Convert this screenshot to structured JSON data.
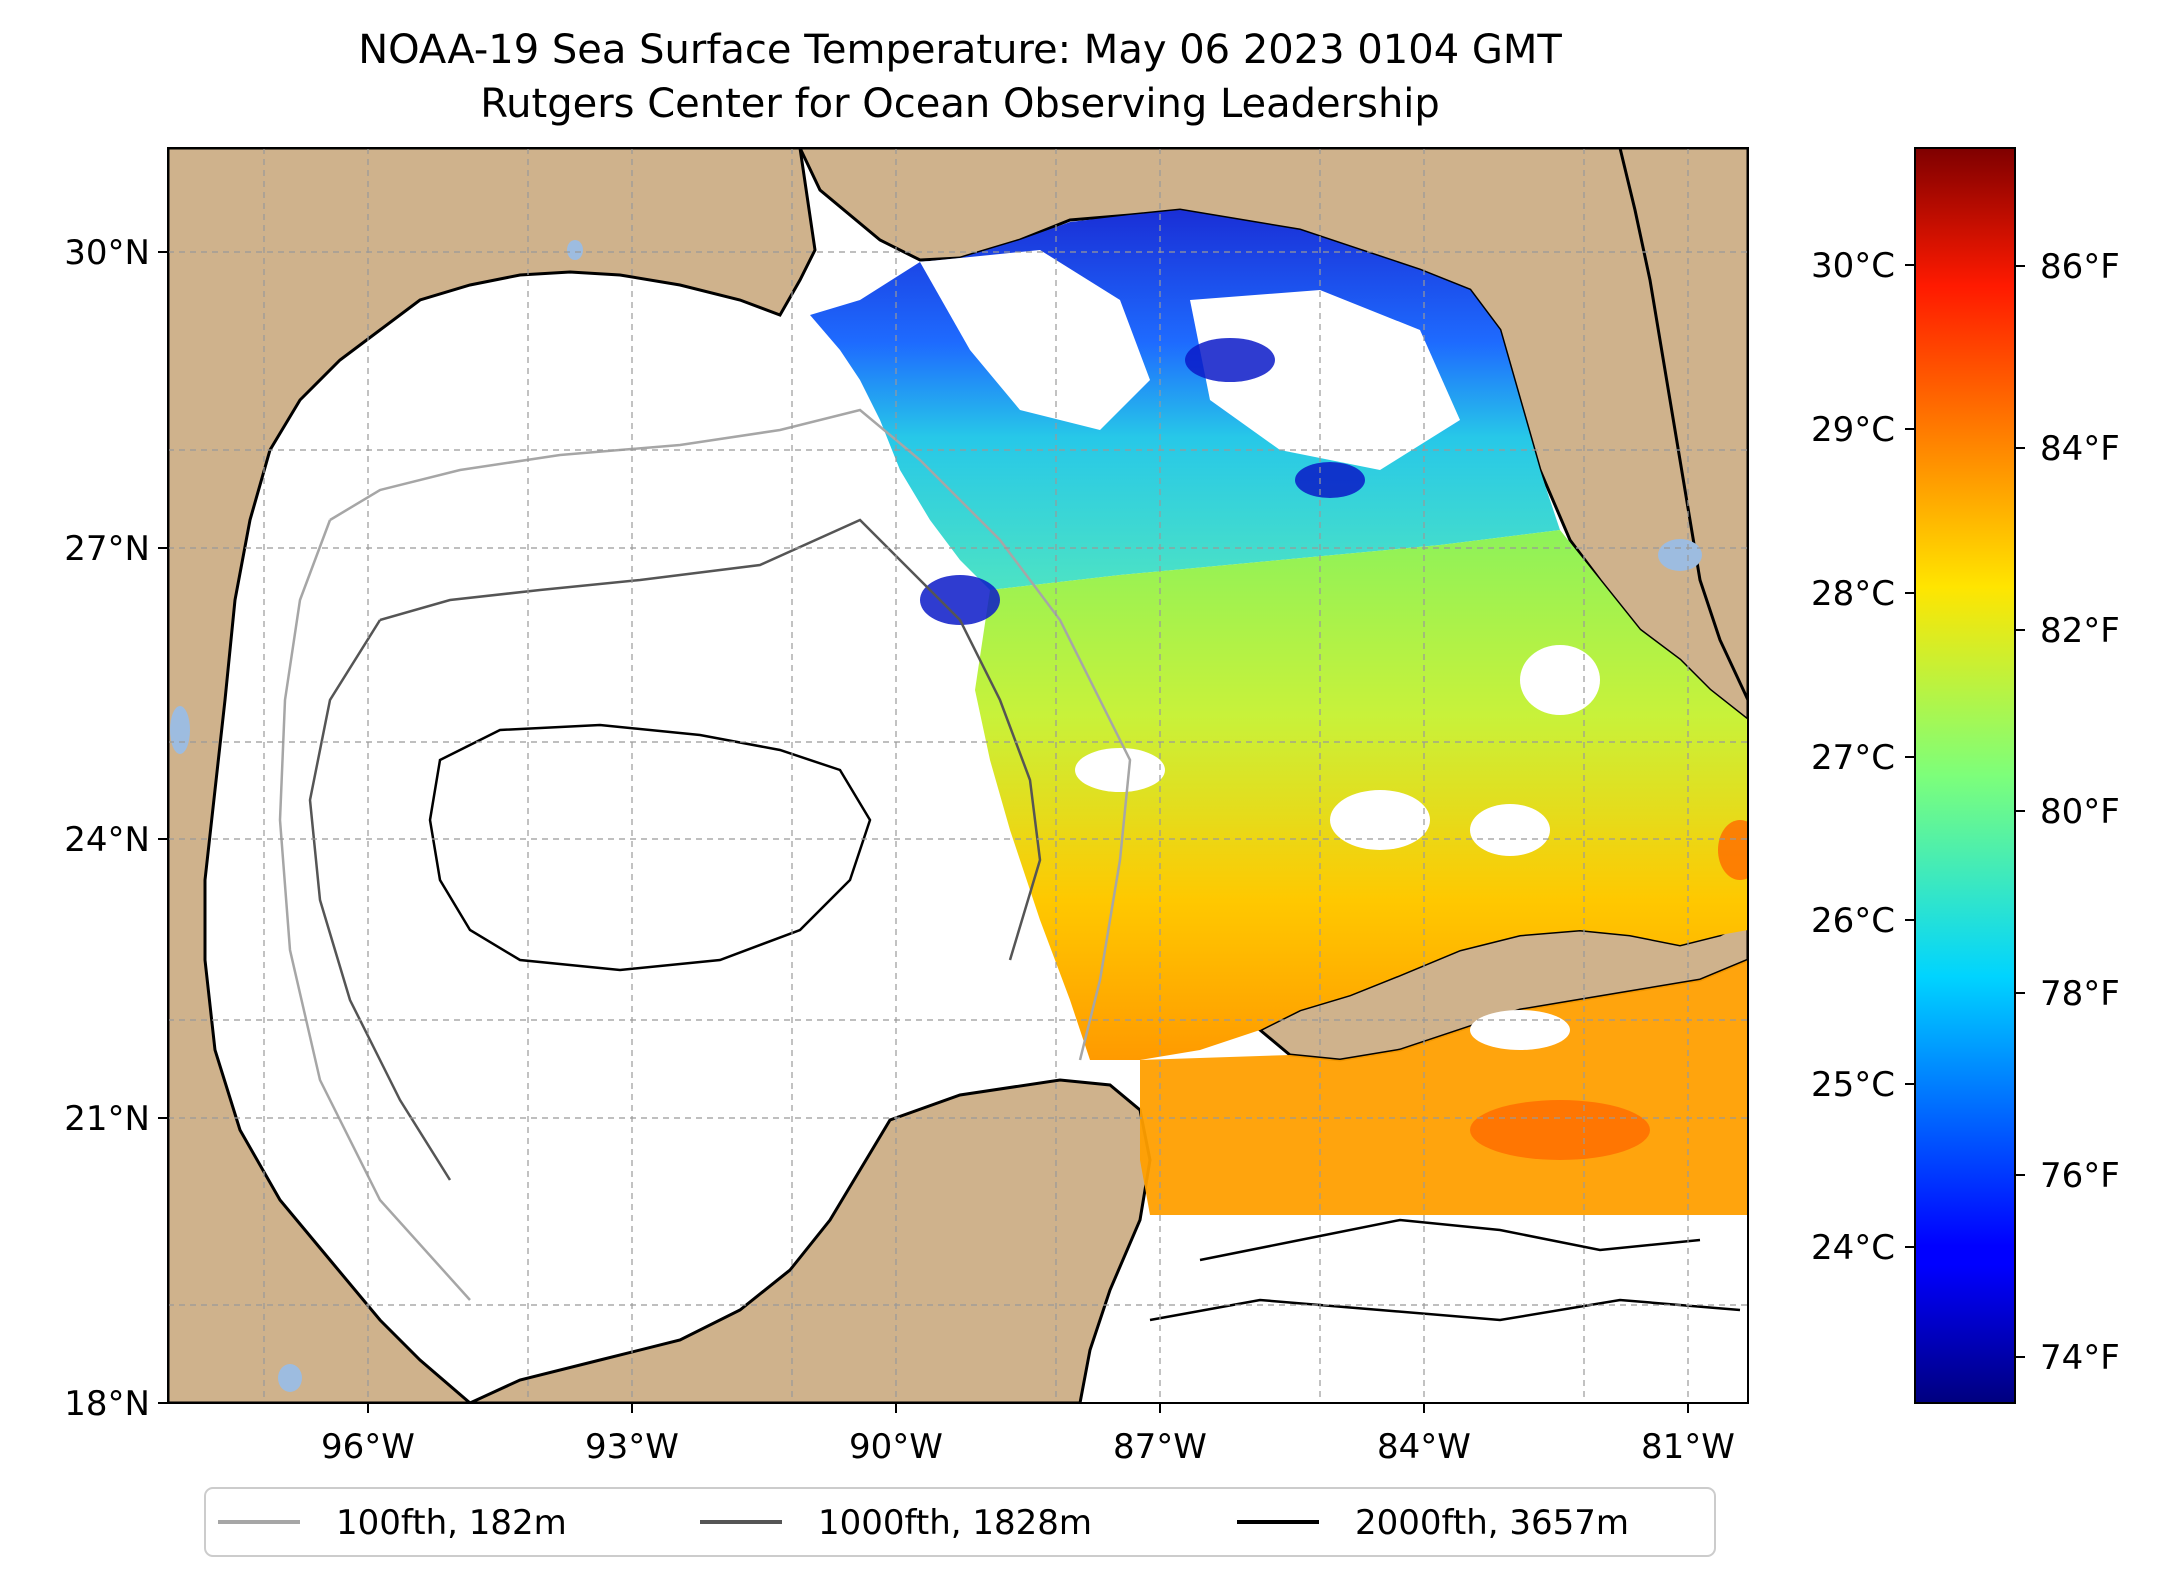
{
  "title": {
    "line1": "NOAA-19 Sea Surface Temperature: May 06 2023 0104 GMT",
    "line2": "Rutgers Center for Ocean Observing Leadership"
  },
  "map": {
    "lat_range": [
      18,
      31
    ],
    "lon_range": [
      -98.25,
      -80.25
    ],
    "lat_ticks": [
      "18°N",
      "21°N",
      "24°N",
      "27°N",
      "30°N"
    ],
    "lon_ticks": [
      "96°W",
      "93°W",
      "90°W",
      "87°W",
      "84°W",
      "81°W"
    ],
    "land_color": "#cfb28c",
    "lake_color": "#9dbce0",
    "gridlines": true
  },
  "colorbar": {
    "colormap": "jet",
    "celsius_ticks": [
      "30°C",
      "29°C",
      "28°C",
      "27°C",
      "26°C",
      "25°C",
      "24°C"
    ],
    "fahrenheit_ticks": [
      "86°F",
      "84°F",
      "82°F",
      "80°F",
      "78°F",
      "76°F",
      "74°F"
    ]
  },
  "legend": {
    "items": [
      {
        "label": "100fth, 182m",
        "color": "#a6a6a6"
      },
      {
        "label": "1000fth, 1828m",
        "color": "#555555"
      },
      {
        "label": "2000fth, 3657m",
        "color": "#000000"
      }
    ]
  }
}
